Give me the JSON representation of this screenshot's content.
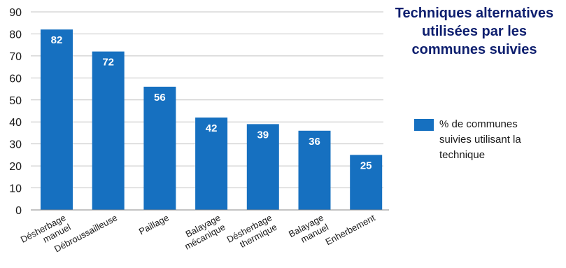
{
  "chart_data": {
    "type": "bar",
    "title": "Techniques alternatives utilisées par les communes suivies",
    "categories": [
      [
        "Désherbage",
        "manuel"
      ],
      [
        "Débroussailleuse"
      ],
      [
        "Paillage"
      ],
      [
        "Balayage",
        "mécanique"
      ],
      [
        "Désherbage",
        "thermique"
      ],
      [
        "Balayage",
        "manuel"
      ],
      [
        "Enherbement"
      ]
    ],
    "series": [
      {
        "name": "% de communes suivies utilisant la technique",
        "values": [
          82,
          72,
          56,
          42,
          39,
          36,
          25
        ]
      }
    ],
    "data_labels": [
      "82",
      "72",
      "56",
      "42",
      "39",
      "36",
      "25"
    ],
    "y_ticks": [
      "0",
      "10",
      "20",
      "30",
      "40",
      "50",
      "60",
      "70",
      "80",
      "90"
    ],
    "ylim": [
      0,
      90
    ],
    "grid": true,
    "legend_position": "right",
    "colors": {
      "bar": "#1670c0",
      "grid": "#c4c4c4",
      "axis": "#8a8a8a",
      "title": "#0d1e6e"
    }
  }
}
